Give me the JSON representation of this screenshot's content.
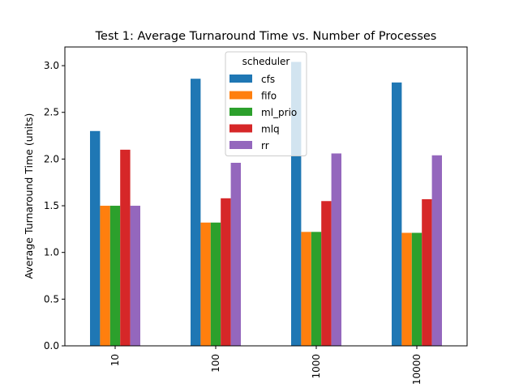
{
  "chart_data": {
    "type": "bar",
    "title": "Test 1: Average Turnaround Time vs. Number of Processes",
    "xlabel": "",
    "ylabel": "Average Turnaround Time (units)",
    "categories": [
      "10",
      "100",
      "1000",
      "10000"
    ],
    "ylim": [
      0,
      3.2
    ],
    "yticks": [
      0.0,
      0.5,
      1.0,
      1.5,
      2.0,
      2.5,
      3.0
    ],
    "ytick_labels": [
      "0.0",
      "0.5",
      "1.0",
      "1.5",
      "2.0",
      "2.5",
      "3.0"
    ],
    "grid": false,
    "legend": {
      "title": "scheduler",
      "placement": "top-center"
    },
    "series": [
      {
        "name": "cfs",
        "color": "#1f77b4",
        "values": [
          2.3,
          2.86,
          3.04,
          2.82
        ]
      },
      {
        "name": "fifo",
        "color": "#ff7f0e",
        "values": [
          1.5,
          1.32,
          1.22,
          1.21
        ]
      },
      {
        "name": "ml_prio",
        "color": "#2ca02c",
        "values": [
          1.5,
          1.32,
          1.22,
          1.21
        ]
      },
      {
        "name": "mlq",
        "color": "#d62728",
        "values": [
          2.1,
          1.58,
          1.55,
          1.57
        ]
      },
      {
        "name": "rr",
        "color": "#9467bd",
        "values": [
          1.5,
          1.96,
          2.06,
          2.04
        ]
      }
    ]
  }
}
